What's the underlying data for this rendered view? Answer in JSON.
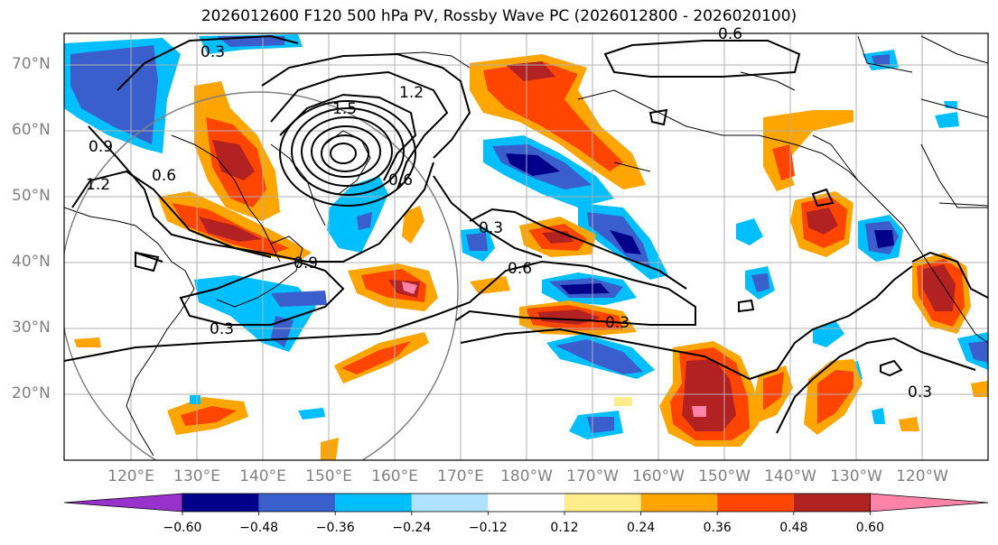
{
  "title": "2026012600 F120 500 hPa PV, Rossby Wave PC (2026012800 - 2026020100)",
  "lat_labels": [
    "70°N",
    "60°N",
    "50°N",
    "40°N",
    "30°N",
    "20°N"
  ],
  "lon_labels": [
    "120°E",
    "130°E",
    "140°E",
    "150°E",
    "160°E",
    "170°E",
    "180°W",
    "170°W",
    "160°W",
    "150°W",
    "140°W",
    "130°W",
    "120°W"
  ],
  "contour_labels": [
    "0.3",
    "1.2",
    "1.5",
    "0.9",
    "1.2",
    "0.6",
    "0.9",
    "0.6",
    "0.3",
    "0.6",
    "0.3",
    "0.3",
    "0.3",
    "0.6"
  ],
  "colorbar": {
    "tick_labels": [
      "−0.60",
      "−0.48",
      "−0.36",
      "−0.24",
      "−0.12",
      "0.12",
      "0.24",
      "0.36",
      "0.48",
      "0.60"
    ],
    "colors": [
      "#9932cc",
      "#00008b",
      "#3a5fcd",
      "#00bfff",
      "#b0e2ff",
      "#ffffff",
      "#ffec8b",
      "#ffa500",
      "#ff4500",
      "#b22222",
      "#ff82ab"
    ]
  },
  "colors": {
    "frame": "#000000",
    "grid": "#b0b0b0",
    "labels": "#808080",
    "circle": "#808080"
  }
}
